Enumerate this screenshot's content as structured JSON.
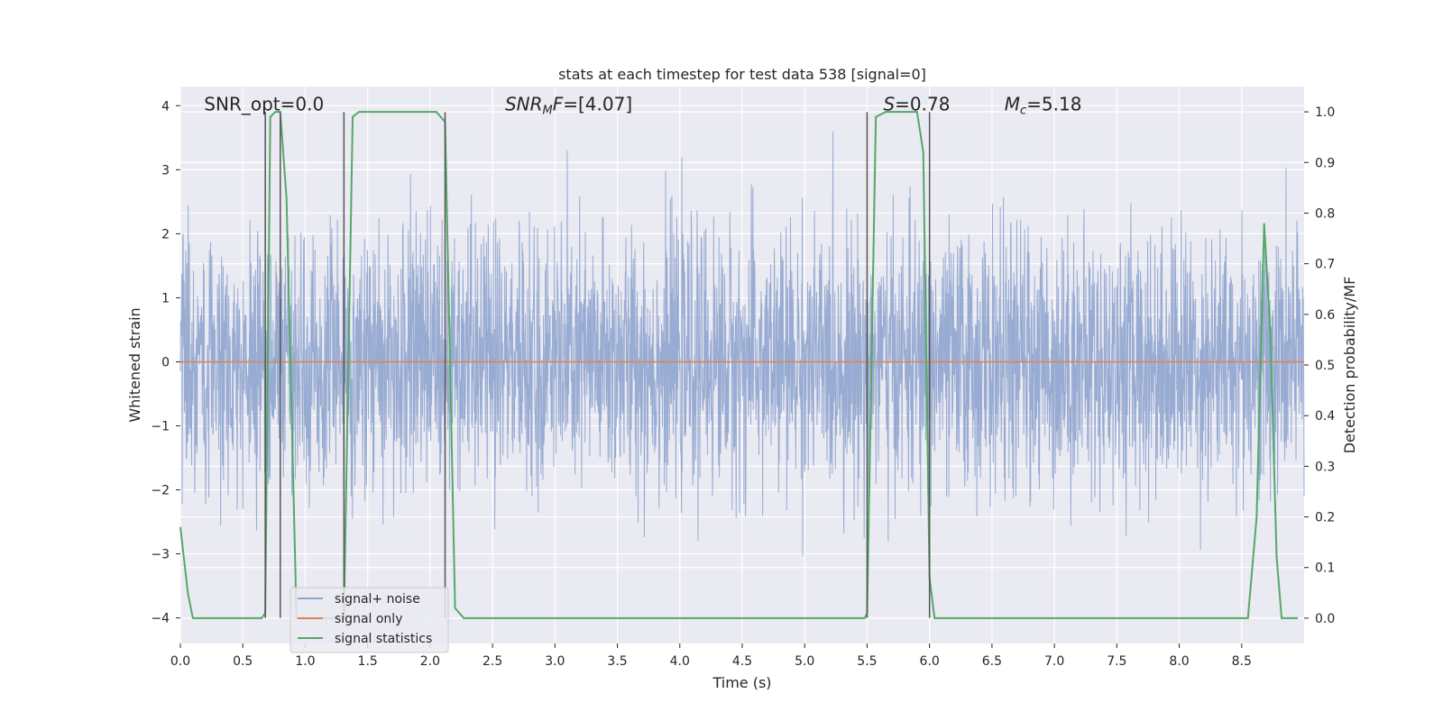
{
  "chart_data": {
    "type": "line",
    "title": "stats at each timestep for test data 538 [signal=0]",
    "xlabel": "Time (s)",
    "ylabel_left": "Whitened strain",
    "ylabel_right": "Detection probability/MF",
    "xlim": [
      0.0,
      9.0
    ],
    "ylim_left": [
      -4.4,
      4.3
    ],
    "ylim_right": [
      -0.05,
      1.05
    ],
    "x_ticks": [
      "0.0",
      "0.5",
      "1.0",
      "1.5",
      "2.0",
      "2.5",
      "3.0",
      "3.5",
      "4.0",
      "4.5",
      "5.0",
      "5.5",
      "6.0",
      "6.5",
      "7.0",
      "7.5",
      "8.0",
      "8.5"
    ],
    "y_ticks_left": [
      "4",
      "3",
      "2",
      "1",
      "0",
      "−1",
      "−2",
      "−3",
      "−4"
    ],
    "y_ticks_right": [
      "1.0",
      "0.9",
      "0.8",
      "0.7",
      "0.6",
      "0.5",
      "0.4",
      "0.3",
      "0.2",
      "0.1",
      "0.0"
    ],
    "grid": true,
    "background": "#eaeaf2",
    "annotations": [
      {
        "text": "SNR_opt=0.0",
        "x": 0.19,
        "y": 4.0
      },
      {
        "text": "SNR_MF=[4.07]",
        "x": 2.6,
        "y": 4.0
      },
      {
        "text": "S=0.78",
        "x": 5.63,
        "y": 4.0
      },
      {
        "text": "M_c=5.18",
        "x": 6.6,
        "y": 4.0
      }
    ],
    "vlines": [
      {
        "x": 0.68,
        "y0": -4.0,
        "y1": 3.9
      },
      {
        "x": 0.8,
        "y0": -4.0,
        "y1": 3.9
      },
      {
        "x": 1.31,
        "y0": -4.0,
        "y1": 3.9
      },
      {
        "x": 2.12,
        "y0": -4.0,
        "y1": 3.9
      },
      {
        "x": 5.5,
        "y0": -4.0,
        "y1": 3.9
      },
      {
        "x": 6.0,
        "y0": -4.0,
        "y1": 3.9
      }
    ],
    "legend": {
      "placement": "lower-left",
      "entries": [
        {
          "label": "signal+ noise",
          "color": "#8fa4cc"
        },
        {
          "label": "signal only",
          "color": "#dd8452"
        },
        {
          "label": "signal statistics",
          "color": "#55a868"
        }
      ]
    },
    "series": [
      {
        "name": "signal+ noise",
        "axis": "left",
        "color": "#94a8d0",
        "description": "noise samples, approx. gaussian, std ~1.0, extremes ~±3.5",
        "std": 1.0,
        "x_range": [
          0.0,
          9.0
        ]
      },
      {
        "name": "signal only",
        "axis": "left",
        "color": "#dd8452",
        "x": [
          0.0,
          9.0
        ],
        "y": [
          0.0,
          0.0
        ]
      },
      {
        "name": "signal statistics",
        "axis": "right",
        "color": "#55a868",
        "x": [
          0.0,
          0.06,
          0.1,
          0.2,
          0.5,
          0.65,
          0.68,
          0.72,
          0.76,
          0.8,
          0.85,
          0.93,
          1.0,
          1.2,
          1.31,
          1.38,
          1.43,
          1.5,
          1.9,
          2.05,
          2.12,
          2.2,
          2.27,
          2.3,
          3.0,
          3.75,
          4.5,
          5.0,
          5.48,
          5.5,
          5.57,
          5.65,
          5.9,
          5.95,
          6.0,
          6.04,
          6.08,
          6.2,
          8.0,
          8.55,
          8.62,
          8.68,
          8.73,
          8.78,
          8.82,
          8.86,
          8.95
        ],
        "y": [
          0.18,
          0.05,
          0.0,
          0.0,
          0.0,
          0.0,
          0.01,
          0.99,
          1.0,
          1.0,
          0.83,
          0.0,
          0.0,
          0.0,
          0.0,
          0.99,
          1.0,
          1.0,
          1.0,
          1.0,
          0.98,
          0.02,
          0.0,
          0.0,
          0.0,
          0.0,
          0.0,
          0.0,
          0.0,
          0.01,
          0.99,
          1.0,
          1.0,
          0.92,
          0.08,
          0.0,
          0.0,
          0.0,
          0.0,
          0.0,
          0.2,
          0.78,
          0.56,
          0.12,
          0.0,
          0.0,
          0.0
        ]
      }
    ]
  }
}
